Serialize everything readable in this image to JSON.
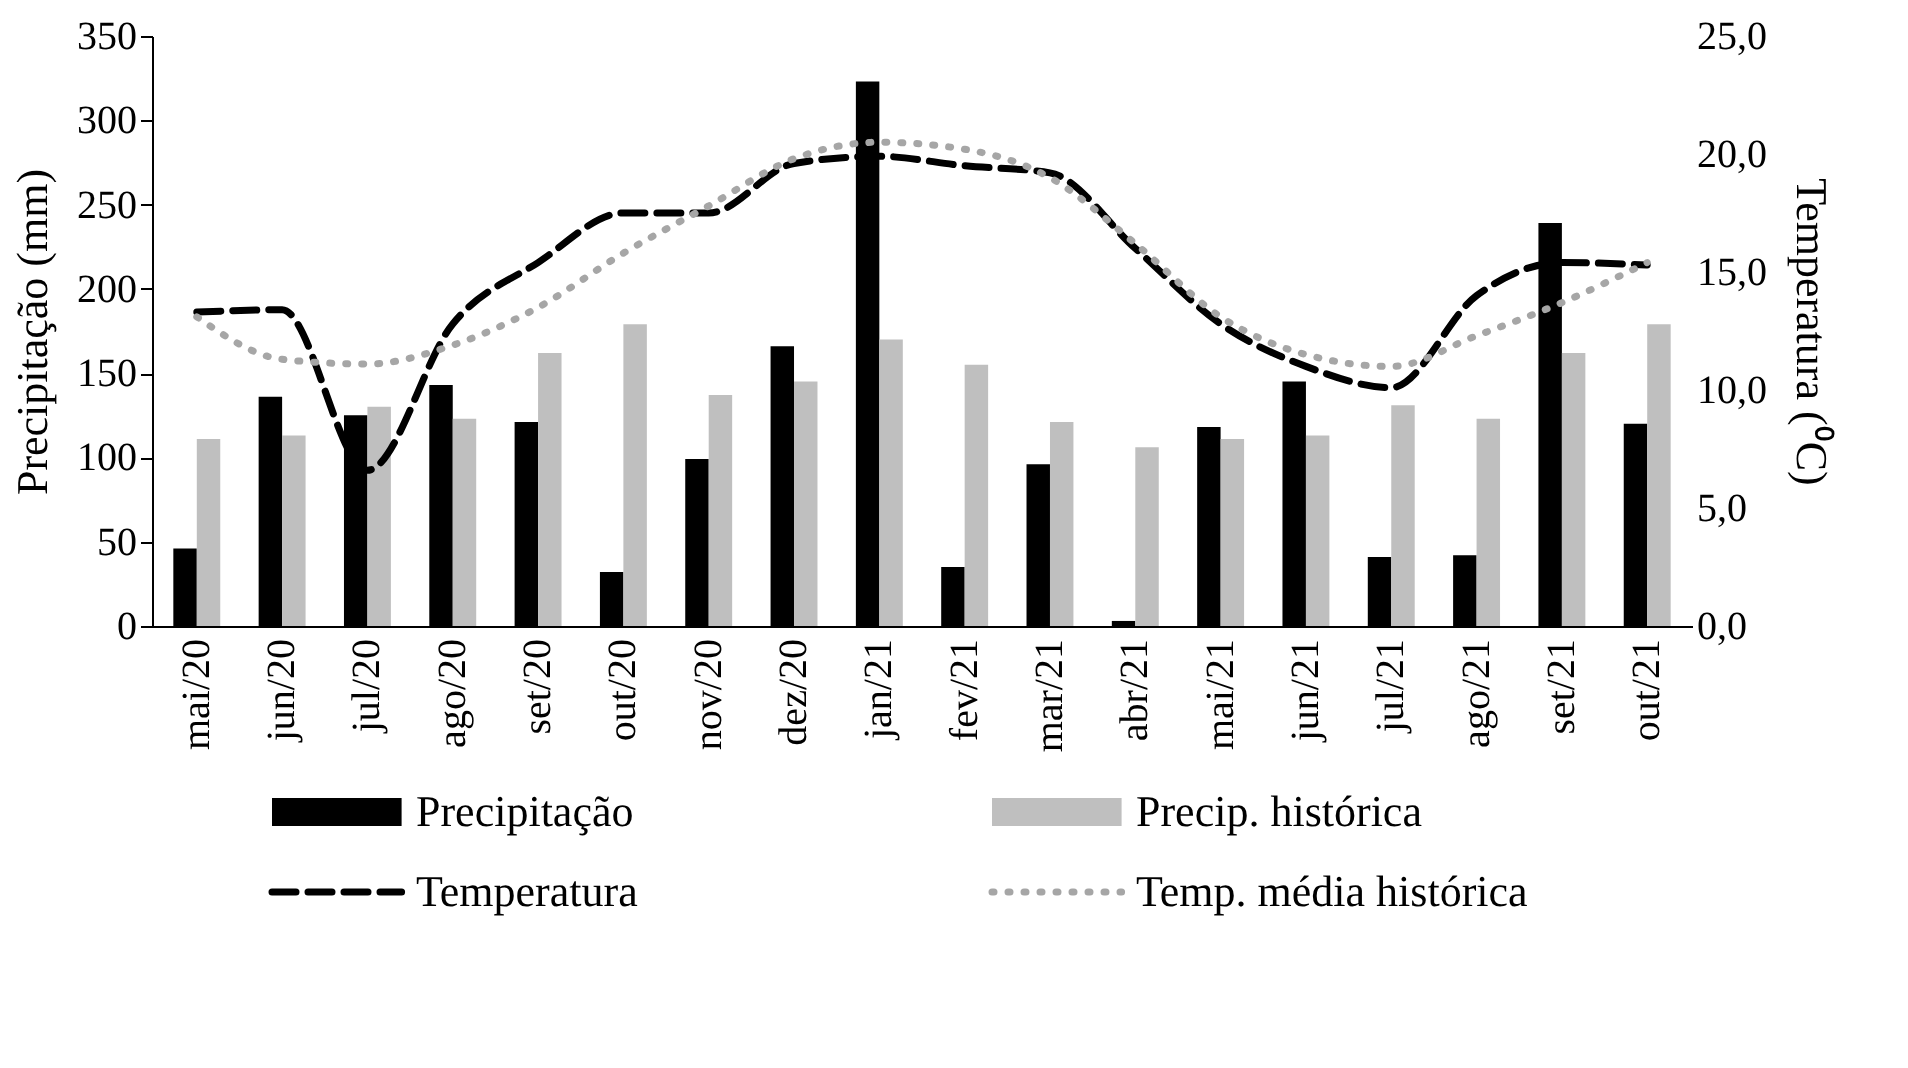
{
  "chart_data": {
    "type": "bar",
    "categories": [
      "mai/20",
      "jun/20",
      "jul/20",
      "ago/20",
      "set/20",
      "out/20",
      "nov/20",
      "dez/20",
      "jan/21",
      "fev/21",
      "mar/21",
      "abr/21",
      "mai/21",
      "jun/21",
      "jul/21",
      "ago/21",
      "set/21",
      "out/21"
    ],
    "series": [
      {
        "name": "Precipitação",
        "color": "#000000",
        "values": [
          46,
          136,
          125,
          143,
          121,
          32,
          99,
          166,
          323,
          35,
          96,
          3,
          118,
          145,
          41,
          42,
          239,
          120
        ]
      },
      {
        "name": "Precip. histórica",
        "color": "#bfbfbf",
        "values": [
          111,
          113,
          130,
          123,
          162,
          179,
          137,
          145,
          170,
          155,
          121,
          106,
          111,
          113,
          131,
          123,
          162,
          179
        ]
      },
      {
        "name": "Temperatura",
        "type": "line",
        "axis": "y2",
        "line_style": "dashed",
        "color": "#000000",
        "values": [
          13.3,
          13.4,
          6.6,
          12.8,
          15.4,
          17.5,
          17.5,
          19.6,
          19.9,
          19.5,
          19.2,
          16.0,
          12.8,
          11.0,
          10.1,
          14.0,
          15.4,
          15.3
        ]
      },
      {
        "name": "Temp. média histórica",
        "type": "line",
        "axis": "y2",
        "line_style": "dotted",
        "color": "#a6a6a6",
        "values": [
          13.1,
          11.3,
          11.1,
          11.9,
          13.5,
          15.8,
          17.8,
          19.8,
          20.5,
          20.2,
          19.0,
          16.2,
          13.1,
          11.5,
          11.0,
          12.3,
          13.7,
          15.4
        ]
      }
    ],
    "ylabel": "Precipitação (mm)",
    "y2label": "Temperatura (⁰C)",
    "ylim": [
      0,
      350
    ],
    "yticks": [
      0,
      50,
      100,
      150,
      200,
      250,
      300,
      350
    ],
    "y2lim": [
      0,
      25
    ],
    "y2ticks": [
      {
        "value": 0,
        "label": "0,0"
      },
      {
        "value": 5,
        "label": "5,0"
      },
      {
        "value": 10,
        "label": "10,0"
      },
      {
        "value": 15,
        "label": "15,0"
      },
      {
        "value": 20,
        "label": "20,0"
      },
      {
        "value": 25,
        "label": "25,0"
      }
    ],
    "grid": false,
    "legend": "bottom",
    "marker": "none"
  }
}
